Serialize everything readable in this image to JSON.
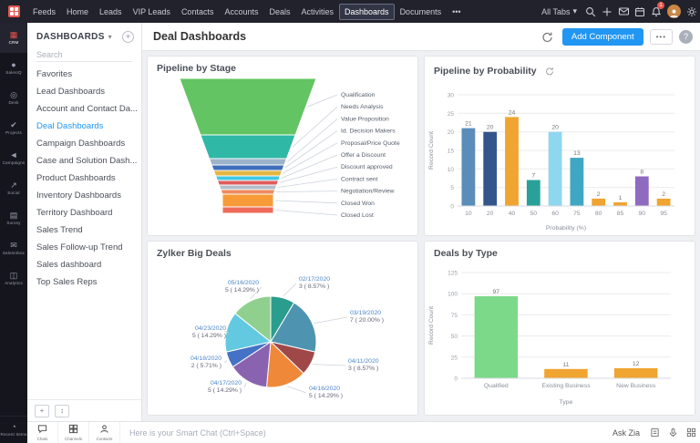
{
  "topnav": {
    "items": [
      "Feeds",
      "Home",
      "Leads",
      "VIP Leads",
      "Contacts",
      "Accounts",
      "Deals",
      "Activities",
      "Dashboards",
      "Documents",
      "•••"
    ],
    "active": "Dashboards",
    "all_tabs": "All Tabs",
    "notification_badge": "1"
  },
  "rail": {
    "items": [
      {
        "label": "CRM",
        "icon": "grid-icon"
      },
      {
        "label": "SalesIQ",
        "icon": "chat-icon"
      },
      {
        "label": "Desk",
        "icon": "headset-icon"
      },
      {
        "label": "Projects",
        "icon": "check-icon"
      },
      {
        "label": "Campaigns",
        "icon": "megaphone-icon"
      },
      {
        "label": "Social",
        "icon": "share-icon"
      },
      {
        "label": "Survey",
        "icon": "survey-icon"
      },
      {
        "label": "SalesInbox",
        "icon": "inbox-icon"
      },
      {
        "label": "Analytics",
        "icon": "analytics-icon"
      }
    ],
    "active": "CRM",
    "recent": "Recent Items"
  },
  "sidebar": {
    "title": "DASHBOARDS",
    "search_placeholder": "Search",
    "items": [
      "Favorites",
      "Lead Dashboards",
      "Account and Contact Da...",
      "Deal Dashboards",
      "Campaign Dashboards",
      "Case and Solution Dash...",
      "Product Dashboards",
      "Inventory Dashboards",
      "Territory Dashboard",
      "Sales Trend",
      "Sales Follow-up Trend",
      "Sales dashboard",
      "Top Sales Reps"
    ],
    "active": "Deal Dashboards"
  },
  "header": {
    "title": "Deal Dashboards",
    "add_component": "Add Component",
    "more": "•••",
    "help": "?"
  },
  "chart_data": [
    {
      "type": "funnel",
      "title": "Pipeline by Stage",
      "stages": [
        {
          "label": "Qualification",
          "color": "#62c462",
          "height": 62,
          "kind": "taper"
        },
        {
          "label": "Needs Analysis",
          "color": "#2eb8a5",
          "height": 26,
          "kind": "taper"
        },
        {
          "label": "Value Proposition",
          "color": "#9db3cc",
          "height": 7,
          "kind": "taper"
        },
        {
          "label": "Id. Decision Makers",
          "color": "#3f6fba",
          "height": 6,
          "kind": "taper"
        },
        {
          "label": "Proposal/Price Quote",
          "color": "#e4b642",
          "height": 6,
          "kind": "taper"
        },
        {
          "label": "Offer a Discount",
          "color": "#41c7e3",
          "height": 5,
          "kind": "taper"
        },
        {
          "label": "Discount approved",
          "color": "#e15b5b",
          "height": 5,
          "kind": "taper"
        },
        {
          "label": "Contract sent",
          "color": "#b4bec8",
          "height": 5,
          "kind": "taper"
        },
        {
          "label": "Negotiation/Review",
          "color": "#ee8a5e",
          "height": 5,
          "kind": "taper"
        },
        {
          "label": "Closed Won",
          "color": "#f79b38",
          "height": 14,
          "kind": "rect"
        },
        {
          "label": "Closed Lost",
          "color": "#ef6a5a",
          "height": 7,
          "kind": "rect"
        }
      ]
    },
    {
      "type": "bar",
      "title": "Pipeline by Probability",
      "categories": [
        "10",
        "20",
        "40",
        "50",
        "60",
        "75",
        "80",
        "85",
        "90",
        "95"
      ],
      "values": [
        21,
        20,
        24,
        7,
        20,
        13,
        2,
        1,
        8,
        2
      ],
      "colors": [
        "#5b8db8",
        "#34558b",
        "#f0a431",
        "#2aa198",
        "#8fd6ef",
        "#3fa7c2",
        "#f0a431",
        "#f0a431",
        "#8f6bbf",
        "#f0a431"
      ],
      "xlabel": "Probability (%)",
      "ylabel": "Record Count",
      "ylim": [
        0,
        30
      ],
      "yticks": [
        0,
        5,
        10,
        15,
        20,
        25,
        30
      ]
    },
    {
      "type": "pie",
      "title": "Zylker Big Deals",
      "slices": [
        {
          "label": "02/17/2020",
          "value": 3,
          "pct": "8.57%",
          "color": "#2a9d8f"
        },
        {
          "label": "03/19/2020",
          "value": 7,
          "pct": "20.00%",
          "color": "#4e94b0"
        },
        {
          "label": "04/11/2020",
          "value": 3,
          "pct": "8.57%",
          "color": "#a04848"
        },
        {
          "label": "04/16/2020",
          "value": 5,
          "pct": "14.29%",
          "color": "#f0883a"
        },
        {
          "label": "04/17/2020",
          "value": 5,
          "pct": "14.29%",
          "color": "#8a63b0"
        },
        {
          "label": "04/18/2020",
          "value": 2,
          "pct": "5.71%",
          "color": "#4472c4"
        },
        {
          "label": "04/23/2020",
          "value": 5,
          "pct": "14.29%",
          "color": "#62c9e0"
        },
        {
          "label": "05/16/2020",
          "value": 5,
          "pct": "14.29%",
          "color": "#8fd08f"
        }
      ]
    },
    {
      "type": "bar",
      "title": "Deals by Type",
      "categories": [
        "Qualified",
        "Existing Business",
        "New Business"
      ],
      "values": [
        97,
        11,
        12
      ],
      "colors": [
        "#7cd98a",
        "#f0a431",
        "#f0a431"
      ],
      "xlabel": "Type",
      "ylabel": "Record Count",
      "ylim": [
        0,
        125
      ],
      "yticks": [
        0,
        25,
        50,
        75,
        100,
        125
      ]
    }
  ],
  "bottombar": {
    "tabs": [
      {
        "label": "Chats",
        "icon": "chat-bubble-icon"
      },
      {
        "label": "Channels",
        "icon": "channels-icon"
      },
      {
        "label": "Contacts",
        "icon": "person-icon"
      }
    ],
    "input_placeholder": "Here is your Smart Chat (Ctrl+Space)",
    "ask_zia": "Ask Zia"
  }
}
